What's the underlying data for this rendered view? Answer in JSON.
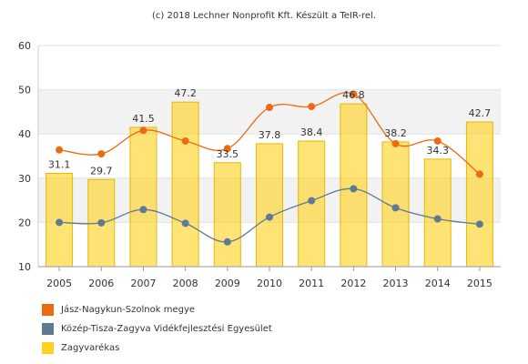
{
  "credit": "(c) 2018 Lechner Nonprofit Kft. Készült a TeIR-rel.",
  "chart_data": {
    "type": "bar",
    "categories": [
      "2005",
      "2006",
      "2007",
      "2008",
      "2009",
      "2010",
      "2011",
      "2012",
      "2013",
      "2014",
      "2015"
    ],
    "ylim": [
      10,
      60
    ],
    "yticks": [
      10,
      20,
      30,
      40,
      50,
      60
    ],
    "grid": true,
    "legend_position": "bottom-left",
    "series": [
      {
        "name": "Jász-Nagykun-Szolnok megye",
        "type": "line",
        "color": "#ee6a11",
        "values": [
          36.4,
          35.5,
          40.8,
          38.4,
          36.7,
          46.0,
          46.2,
          49.0,
          37.8,
          38.4,
          30.9
        ]
      },
      {
        "name": "Közép-Tisza-Zagyva Vidékfejlesztési Egyesület",
        "type": "line",
        "color": "#5f7a95",
        "values": [
          20.0,
          19.9,
          22.9,
          19.8,
          15.6,
          21.2,
          24.9,
          27.6,
          23.3,
          20.8,
          19.6
        ]
      },
      {
        "name": "Zagyvarékas",
        "type": "bar",
        "color": "#ffd21f",
        "values": [
          31.1,
          29.7,
          41.5,
          47.2,
          33.5,
          37.8,
          38.4,
          46.8,
          38.2,
          34.3,
          42.7
        ],
        "labels": [
          "31.1",
          "29.7",
          "41.5",
          "47.2",
          "33.5",
          "37.8",
          "38.4",
          "46.8",
          "38.2",
          "34.3",
          "42.7"
        ]
      }
    ]
  }
}
